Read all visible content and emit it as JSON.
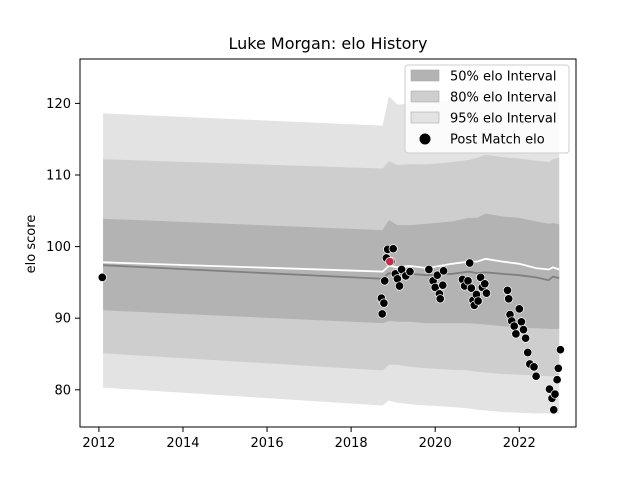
{
  "chart_data": {
    "type": "scatter",
    "title": "Luke Morgan: elo History",
    "xlabel": "",
    "ylabel": "elo score",
    "xlim": [
      2011.55,
      2023.35
    ],
    "ylim": [
      74.8,
      126.2
    ],
    "x_ticks": [
      "2012",
      "2014",
      "2016",
      "2018",
      "2020",
      "2022"
    ],
    "y_ticks": [
      "80",
      "90",
      "100",
      "110",
      "120"
    ],
    "grid": false,
    "legend_position": "top-right",
    "legend": [
      "50% elo Interval",
      "80% elo Interval",
      "95% elo Interval",
      "Post Match elo"
    ],
    "colors": {
      "band50": "#b3b3b3",
      "band80": "#cecece",
      "band95": "#e3e3e3",
      "mean_line": "#808080",
      "white_line": "#ffffff",
      "marker": "#000000",
      "highlight": "#c0304a"
    },
    "bands": {
      "x": [
        2012.1,
        2018.75,
        2018.9,
        2019.1,
        2019.4,
        2019.8,
        2020.4,
        2020.8,
        2021.0,
        2021.2,
        2021.6,
        2022.0,
        2022.4,
        2022.7,
        2022.8,
        2022.95
      ],
      "mean": [
        97.4,
        95.5,
        96.3,
        96.0,
        96.2,
        96.0,
        96.2,
        96.5,
        96.3,
        96.4,
        96.2,
        96.0,
        95.7,
        95.3,
        95.8,
        95.6
      ],
      "white": [
        97.8,
        96.5,
        97.3,
        97.1,
        97.3,
        97.0,
        97.6,
        97.9,
        97.9,
        98.3,
        97.9,
        97.6,
        97.0,
        96.8,
        97.1,
        96.8
      ],
      "p50_lo": [
        91.1,
        89.3,
        89.6,
        89.5,
        89.5,
        89.3,
        89.3,
        89.3,
        89.2,
        89.1,
        88.9,
        88.7,
        88.6,
        88.5,
        88.5,
        88.5
      ],
      "p50_hi": [
        103.9,
        102.3,
        103.7,
        103.0,
        103.0,
        103.2,
        103.5,
        104.0,
        104.0,
        104.6,
        104.2,
        104.0,
        103.5,
        103.2,
        103.3,
        103.1
      ],
      "p80_lo": [
        85.1,
        82.7,
        83.5,
        83.5,
        83.2,
        83.0,
        82.8,
        82.7,
        82.5,
        82.4,
        82.2,
        82.1,
        82.0,
        81.9,
        81.9,
        81.9
      ],
      "p80_hi": [
        112.2,
        110.9,
        111.9,
        111.4,
        111.5,
        111.5,
        111.8,
        112.1,
        112.4,
        112.8,
        112.5,
        112.3,
        112.0,
        111.8,
        112.2,
        112.4
      ],
      "p95_lo": [
        80.3,
        77.8,
        78.5,
        78.2,
        78.0,
        77.8,
        77.6,
        77.4,
        77.2,
        77.1,
        76.9,
        76.8,
        76.7,
        76.7,
        76.7,
        76.7
      ],
      "p95_hi": [
        118.6,
        116.9,
        121.0,
        119.8,
        120.0,
        120.2,
        120.4,
        120.8,
        121.0,
        121.4,
        121.0,
        120.8,
        120.5,
        120.4,
        120.5,
        120.7
      ]
    },
    "points": [
      [
        2012.08,
        95.7
      ],
      [
        2018.72,
        92.8
      ],
      [
        2018.74,
        90.6
      ],
      [
        2018.78,
        92.1
      ],
      [
        2018.8,
        95.2
      ],
      [
        2018.84,
        98.4
      ],
      [
        2018.87,
        99.6
      ],
      [
        2018.95,
        97.9
      ],
      [
        2019.0,
        99.7
      ],
      [
        2019.05,
        96.2
      ],
      [
        2019.1,
        95.5
      ],
      [
        2019.15,
        94.5
      ],
      [
        2019.2,
        96.8
      ],
      [
        2019.3,
        95.9
      ],
      [
        2019.4,
        96.5
      ],
      [
        2019.85,
        96.8
      ],
      [
        2019.95,
        95.2
      ],
      [
        2020.0,
        94.3
      ],
      [
        2020.05,
        96.0
      ],
      [
        2020.1,
        93.4
      ],
      [
        2020.12,
        92.7
      ],
      [
        2020.18,
        94.6
      ],
      [
        2020.2,
        96.6
      ],
      [
        2020.65,
        95.4
      ],
      [
        2020.7,
        94.5
      ],
      [
        2020.78,
        95.2
      ],
      [
        2020.82,
        97.7
      ],
      [
        2020.86,
        94.2
      ],
      [
        2020.9,
        92.5
      ],
      [
        2020.93,
        91.8
      ],
      [
        2020.98,
        93.3
      ],
      [
        2021.02,
        92.4
      ],
      [
        2021.08,
        95.7
      ],
      [
        2021.12,
        94.3
      ],
      [
        2021.18,
        94.8
      ],
      [
        2021.22,
        93.5
      ],
      [
        2021.72,
        93.9
      ],
      [
        2021.75,
        92.7
      ],
      [
        2021.78,
        90.5
      ],
      [
        2021.82,
        89.6
      ],
      [
        2021.88,
        88.9
      ],
      [
        2021.92,
        87.8
      ],
      [
        2022.0,
        91.3
      ],
      [
        2022.05,
        89.5
      ],
      [
        2022.1,
        88.4
      ],
      [
        2022.15,
        87.2
      ],
      [
        2022.2,
        85.2
      ],
      [
        2022.25,
        83.6
      ],
      [
        2022.35,
        83.2
      ],
      [
        2022.4,
        81.9
      ],
      [
        2022.72,
        80.1
      ],
      [
        2022.78,
        78.8
      ],
      [
        2022.82,
        77.2
      ],
      [
        2022.85,
        79.4
      ],
      [
        2022.9,
        81.4
      ],
      [
        2022.93,
        83.0
      ],
      [
        2022.98,
        85.6
      ]
    ],
    "highlight_point": [
      2018.92,
      97.9
    ]
  }
}
